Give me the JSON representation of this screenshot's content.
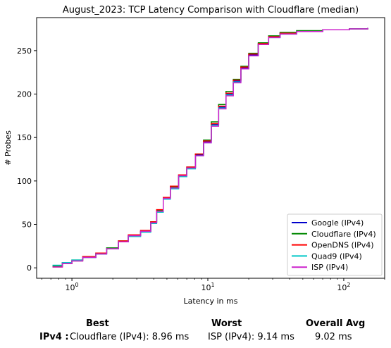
{
  "chart_data": {
    "type": "line",
    "title": "August_2023: TCP Latency Comparison with Cloudflare (median)",
    "xlabel": "Latency in ms",
    "ylabel": "# Probes",
    "xscale": "log",
    "xlim": [
      0.55,
      200
    ],
    "ylim": [
      -12,
      288
    ],
    "xticks": [
      {
        "value": 1,
        "label": "10^0"
      },
      {
        "value": 10,
        "label": "10^1"
      },
      {
        "value": 100,
        "label": "10^2"
      }
    ],
    "yticks": [
      0,
      50,
      100,
      150,
      200,
      250
    ],
    "grid": false,
    "legend_position": "lower-right",
    "series": [
      {
        "name": "Google (IPv4)",
        "color": "#0000cc",
        "x": [
          0.72,
          0.85,
          1.0,
          1.2,
          1.5,
          1.8,
          2.2,
          2.6,
          3.2,
          3.8,
          4.2,
          4.7,
          5.3,
          6.1,
          7.0,
          8.1,
          9.3,
          10.6,
          12.0,
          13.6,
          15.4,
          17.5,
          20.0,
          23.5,
          28.0,
          34.0,
          45.0,
          70.0,
          110.0,
          150.0
        ],
        "y": [
          2,
          5,
          8,
          12,
          16,
          22,
          30,
          37,
          42,
          52,
          65,
          80,
          92,
          106,
          115,
          130,
          145,
          165,
          185,
          200,
          215,
          230,
          245,
          258,
          266,
          270,
          272,
          274,
          275,
          276
        ]
      },
      {
        "name": "Cloudflare (IPv4)",
        "color": "#008800",
        "x": [
          0.72,
          0.85,
          1.0,
          1.2,
          1.5,
          1.8,
          2.2,
          2.6,
          3.2,
          3.8,
          4.2,
          4.7,
          5.3,
          6.1,
          7.0,
          8.1,
          9.3,
          10.6,
          12.0,
          13.6,
          15.4,
          17.5,
          20.0,
          23.5,
          28.0,
          34.0,
          45.0,
          70.0,
          110.0,
          150.0
        ],
        "y": [
          2,
          6,
          9,
          12,
          17,
          23,
          31,
          37,
          42,
          53,
          66,
          81,
          93,
          107,
          116,
          131,
          147,
          168,
          188,
          203,
          217,
          232,
          247,
          259,
          267,
          271,
          273,
          274,
          275,
          276
        ]
      },
      {
        "name": "OpenDNS (IPv4)",
        "color": "#ff0000",
        "x": [
          0.72,
          0.85,
          1.0,
          1.2,
          1.5,
          1.8,
          2.2,
          2.6,
          3.2,
          3.8,
          4.2,
          4.7,
          5.3,
          6.1,
          7.0,
          8.1,
          9.3,
          10.6,
          12.0,
          13.6,
          15.4,
          17.5,
          20.0,
          23.5,
          28.0,
          34.0,
          45.0,
          70.0,
          110.0,
          150.0
        ],
        "y": [
          1,
          5,
          8,
          13,
          17,
          22,
          31,
          38,
          43,
          53,
          67,
          81,
          94,
          107,
          116,
          131,
          146,
          166,
          186,
          201,
          216,
          231,
          246,
          258,
          266,
          270,
          272,
          274,
          275,
          276
        ]
      },
      {
        "name": "Quad9 (IPv4)",
        "color": "#00c8c8",
        "x": [
          0.72,
          0.85,
          1.0,
          1.2,
          1.5,
          1.8,
          2.2,
          2.6,
          3.2,
          3.8,
          4.2,
          4.7,
          5.3,
          6.1,
          7.0,
          8.1,
          9.3,
          10.6,
          12.0,
          13.6,
          15.4,
          17.5,
          20.0,
          23.5,
          28.0,
          34.0,
          45.0,
          70.0,
          110.0,
          150.0
        ],
        "y": [
          3,
          6,
          9,
          12,
          16,
          22,
          30,
          36,
          41,
          51,
          64,
          79,
          91,
          105,
          114,
          129,
          144,
          164,
          184,
          199,
          214,
          229,
          244,
          257,
          265,
          269,
          272,
          274,
          275,
          276
        ]
      },
      {
        "name": "ISP (IPv4)",
        "color": "#cc22cc",
        "x": [
          0.72,
          0.85,
          1.0,
          1.2,
          1.5,
          1.8,
          2.2,
          2.6,
          3.2,
          3.8,
          4.2,
          4.7,
          5.3,
          6.1,
          7.0,
          8.1,
          9.3,
          10.6,
          12.0,
          13.6,
          15.4,
          17.5,
          20.0,
          23.5,
          28.0,
          34.0,
          45.0,
          70.0,
          110.0,
          150.0
        ],
        "y": [
          1,
          5,
          8,
          12,
          16,
          22,
          30,
          37,
          42,
          52,
          65,
          80,
          92,
          106,
          115,
          129,
          144,
          163,
          183,
          198,
          213,
          229,
          244,
          257,
          265,
          269,
          272,
          274,
          275,
          276
        ]
      }
    ]
  },
  "summary": {
    "best_header": "Best",
    "worst_header": "Worst",
    "avg_header": "Overall Avg",
    "row_label": "IPv4 :",
    "best_value": "Cloudflare (IPv4): 8.96 ms",
    "worst_value": "ISP (IPv4): 9.14 ms",
    "avg_value": "9.02 ms"
  }
}
